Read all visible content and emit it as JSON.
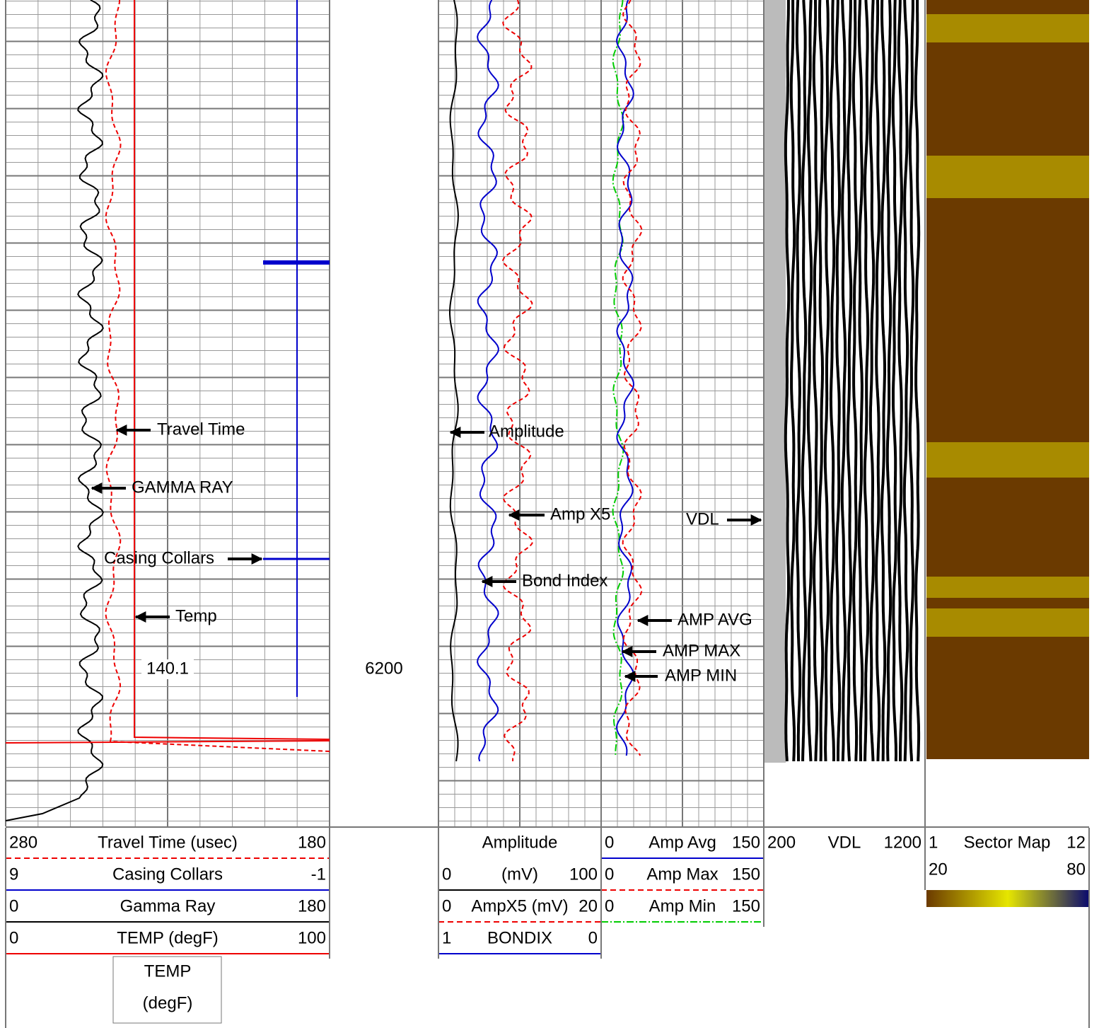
{
  "annotations": {
    "travel_time": "Travel Time",
    "gamma_ray": "GAMMA RAY",
    "casing_collars": "Casing Collars",
    "temp": "Temp",
    "amplitude": "Amplitude",
    "amp_x5": "Amp X5",
    "bond_index": "Bond Index",
    "vdl": "VDL",
    "amp_avg": "AMP AVG",
    "amp_max": "AMP MAX",
    "amp_min": "AMP MIN"
  },
  "readouts": {
    "temp": "140.1",
    "depth": "6200"
  },
  "headers": {
    "track1": [
      {
        "left": "280",
        "name": "Travel Time (usec)",
        "right": "180"
      },
      {
        "left": "9",
        "name": "Casing Collars",
        "right": "-1"
      },
      {
        "left": "0",
        "name": "Gamma Ray",
        "right": "180"
      },
      {
        "left": "0",
        "name": "TEMP (degF)",
        "right": "100"
      }
    ],
    "temp_box": [
      "TEMP",
      "(degF)"
    ],
    "track2": {
      "title": "Amplitude",
      "rows": [
        {
          "left": "0",
          "name": "(mV)",
          "right": "100"
        },
        {
          "left": "0",
          "name": "AmpX5 (mV)",
          "right": "20"
        },
        {
          "left": "1",
          "name": "BONDIX",
          "right": "0"
        }
      ]
    },
    "track3": [
      {
        "left": "0",
        "name": "Amp Avg",
        "right": "150"
      },
      {
        "left": "0",
        "name": "Amp Max",
        "right": "150"
      },
      {
        "left": "0",
        "name": "Amp Min",
        "right": "150"
      }
    ],
    "vdl": {
      "left": "200",
      "name": "VDL",
      "right": "1200"
    },
    "sector_map": {
      "left": "1",
      "name": "Sector Map",
      "right": "12",
      "min": "20",
      "max": "80"
    }
  }
}
